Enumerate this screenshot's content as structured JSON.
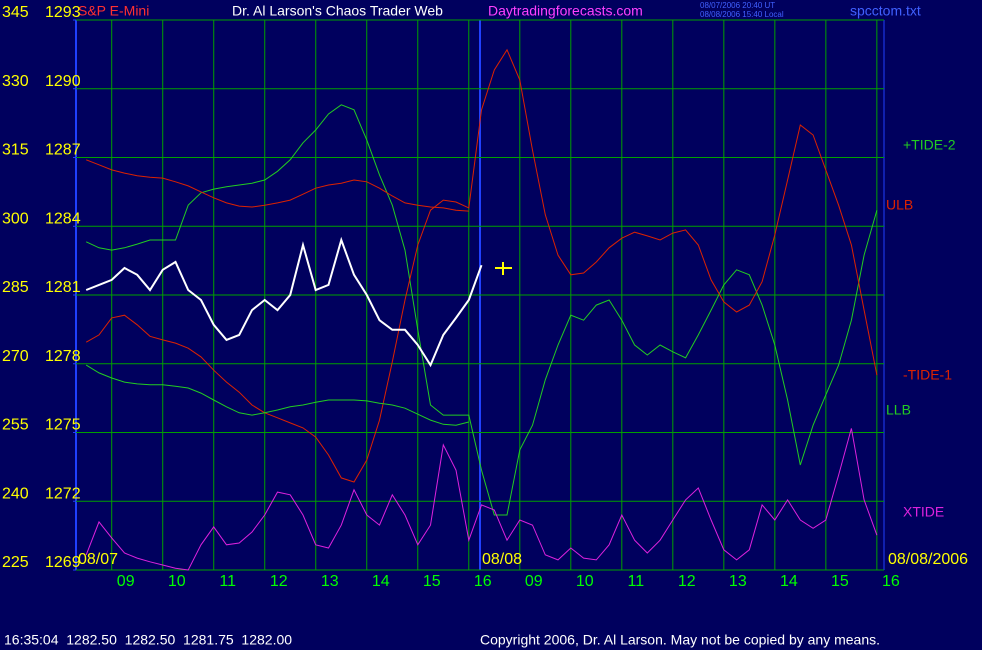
{
  "chart_data": {
    "type": "line",
    "instrument": "S&P E-Mini",
    "title": "Dr. Al Larson's Chaos Trader Web",
    "website": "Daytradingforecasts.com",
    "timestamps": [
      "08/07/2006 20:40 UT",
      "08/08/2006 15:40 Local"
    ],
    "file": "spcctom.txt",
    "quote": "16:35:04  1282.50  1282.50  1281.75  1282.00",
    "copyright": "Copyright 2006, Dr. Al Larson. May not be copied by any means.",
    "date_labels": [
      "08/07",
      "08/08",
      "08/08/2006"
    ],
    "grid": true,
    "xlim": [
      8.3,
      24.14
    ],
    "xticks": [
      {
        "value": 9,
        "label": "09"
      },
      10,
      11,
      12,
      13,
      14,
      15,
      16,
      {
        "value": 17,
        "label": "09"
      },
      {
        "value": 18,
        "label": "10"
      },
      {
        "value": 19,
        "label": "11"
      },
      {
        "value": 20,
        "label": "12"
      },
      {
        "value": 21,
        "label": "13"
      },
      {
        "value": 22,
        "label": "14"
      },
      {
        "value": 23,
        "label": "15"
      },
      {
        "value": 24,
        "label": "16"
      }
    ],
    "ylim": [
      225,
      345
    ],
    "yticks": [
      345,
      330,
      315,
      300,
      285,
      270,
      255,
      240,
      225
    ],
    "y2lim": [
      1269,
      1293
    ],
    "y2ticks": [
      1293,
      1290,
      1287,
      1284,
      1281,
      1278,
      1275,
      1272,
      1269
    ],
    "x": [
      8.5,
      8.75,
      9,
      9.25,
      9.5,
      9.75,
      10,
      10.25,
      10.5,
      10.75,
      11,
      11.25,
      11.5,
      11.75,
      12,
      12.25,
      12.5,
      12.75,
      13,
      13.25,
      13.5,
      13.75,
      14,
      14.25,
      14.5,
      14.75,
      15,
      15.25,
      15.5,
      15.75,
      16,
      16.25,
      16.5,
      16.75,
      17,
      17.25,
      17.5,
      17.75,
      18,
      18.25,
      18.5,
      18.75,
      19,
      19.25,
      19.5,
      19.75,
      20,
      20.25,
      20.5,
      20.75,
      21,
      21.25,
      21.5,
      21.75,
      22,
      22.25,
      22.5,
      22.75,
      23,
      23.25,
      23.5,
      23.75,
      24
    ],
    "series": [
      {
        "name": "+TIDE-2",
        "color": "#22cc22",
        "values": [
          296.6,
          295.3,
          294.8,
          295.3,
          296.1,
          297.0,
          297.0,
          297.0,
          304.6,
          307.3,
          308.1,
          308.6,
          309.0,
          309.4,
          310.1,
          312.0,
          314.5,
          318.2,
          321.0,
          324.5,
          326.5,
          325.4,
          318.8,
          311.2,
          304.6,
          294.8,
          277.4,
          261.0,
          258.8,
          258.8,
          258.8,
          246.8,
          237.0,
          237.0,
          251.2,
          256.6,
          266.5,
          274.1,
          280.6,
          279.5,
          282.8,
          283.9,
          279.5,
          274.1,
          271.9,
          274.1,
          272.6,
          271.3,
          276.3,
          281.7,
          287.2,
          290.5,
          289.4,
          282.8,
          274.1,
          262.1,
          247.9,
          256.6,
          263.2,
          269.7,
          279.5,
          293.7,
          303.5
        ]
      },
      {
        "name": "ULB",
        "color": "#dd2200",
        "values": [
          314.5,
          313.4,
          312.3,
          311.6,
          311.0,
          310.7,
          310.5,
          309.7,
          308.8,
          307.5,
          306.2,
          305.1,
          304.4,
          304.2,
          304.6,
          305.1,
          305.7,
          307.0,
          308.3,
          309.0,
          309.4,
          310.1,
          309.7,
          308.3,
          306.6,
          305.1,
          304.6,
          304.2,
          304.0,
          303.5,
          303.3,
          null,
          null,
          null,
          null,
          null,
          null,
          null,
          null,
          null,
          null,
          null,
          null,
          null,
          null,
          null,
          null,
          null,
          null,
          null,
          null,
          null,
          null,
          null,
          null,
          null,
          null,
          null,
          null,
          null,
          null,
          null,
          null
        ]
      },
      {
        "name": "-TIDE-1",
        "color": "#dd2200",
        "values": [
          274.7,
          276.3,
          280.0,
          280.6,
          278.5,
          276.0,
          275.2,
          274.5,
          273.4,
          271.5,
          268.6,
          266.0,
          263.8,
          261.0,
          259.3,
          258.2,
          257.1,
          256.0,
          254.0,
          250.1,
          245.1,
          244.2,
          249.0,
          257.7,
          270.4,
          283.9,
          295.9,
          303.5,
          305.7,
          305.3,
          304.0,
          325.4,
          334.1,
          338.5,
          331.9,
          316.6,
          302.5,
          293.7,
          289.4,
          289.8,
          292.2,
          295.3,
          297.4,
          298.7,
          297.9,
          297.0,
          298.5,
          299.2,
          295.9,
          288.3,
          283.5,
          281.3,
          282.8,
          287.9,
          298.1,
          310.1,
          322.1,
          319.9,
          312.3,
          304.6,
          295.9,
          281.7,
          267.5
        ]
      },
      {
        "name": "LLB",
        "color": "#22cc22",
        "values": [
          269.7,
          268.0,
          266.9,
          266.0,
          265.6,
          265.4,
          265.4,
          265.1,
          264.7,
          263.6,
          262.1,
          260.6,
          259.3,
          258.8,
          259.3,
          259.9,
          260.6,
          261.0,
          261.6,
          262.1,
          262.1,
          262.1,
          261.9,
          261.4,
          261.0,
          260.3,
          259.0,
          257.7,
          256.8,
          256.6,
          257.3,
          null,
          null,
          null,
          null,
          null,
          null,
          null,
          null,
          null,
          null,
          null,
          null,
          null,
          null,
          null,
          null,
          null,
          null,
          null,
          null,
          null,
          null,
          null,
          null,
          null,
          null,
          null,
          null,
          null,
          null,
          null,
          null
        ]
      },
      {
        "name": "XTIDE",
        "color": "#dd22dd",
        "values": [
          228.3,
          235.5,
          232.0,
          228.7,
          227.6,
          226.8,
          226.1,
          225.4,
          225.0,
          230.5,
          234.4,
          230.5,
          230.9,
          233.3,
          237.0,
          242.0,
          241.4,
          237.0,
          230.5,
          229.8,
          234.8,
          242.5,
          237.0,
          234.8,
          241.4,
          237.0,
          230.5,
          234.8,
          252.3,
          246.8,
          231.5,
          239.2,
          238.1,
          231.5,
          235.9,
          234.8,
          228.3,
          227.2,
          229.8,
          227.6,
          227.2,
          230.5,
          237.0,
          231.5,
          228.7,
          231.5,
          235.9,
          240.3,
          242.9,
          235.9,
          229.4,
          227.2,
          229.4,
          239.2,
          235.9,
          240.3,
          235.9,
          234.1,
          235.9,
          245.7,
          255.9,
          240.3,
          232.6
        ]
      },
      {
        "color": "#ffffff",
        "values": [
          286.1,
          287.2,
          288.3,
          290.9,
          289.4,
          286.1,
          290.5,
          292.2,
          286.1,
          283.9,
          278.5,
          275.2,
          276.3,
          281.7,
          283.9,
          281.7,
          285.0,
          295.9,
          286.1,
          287.2,
          297.0,
          289.4,
          285.0,
          279.5,
          277.4,
          277.4,
          274.1,
          269.7,
          276.3,
          280.0,
          283.9,
          291.5,
          null,
          null,
          null,
          null,
          null,
          null,
          null,
          null,
          null,
          null,
          null,
          null,
          null,
          null,
          null,
          null,
          null,
          null,
          null,
          null,
          null,
          null,
          null,
          null,
          null,
          null,
          null,
          null,
          null,
          null,
          null
        ]
      }
    ]
  }
}
